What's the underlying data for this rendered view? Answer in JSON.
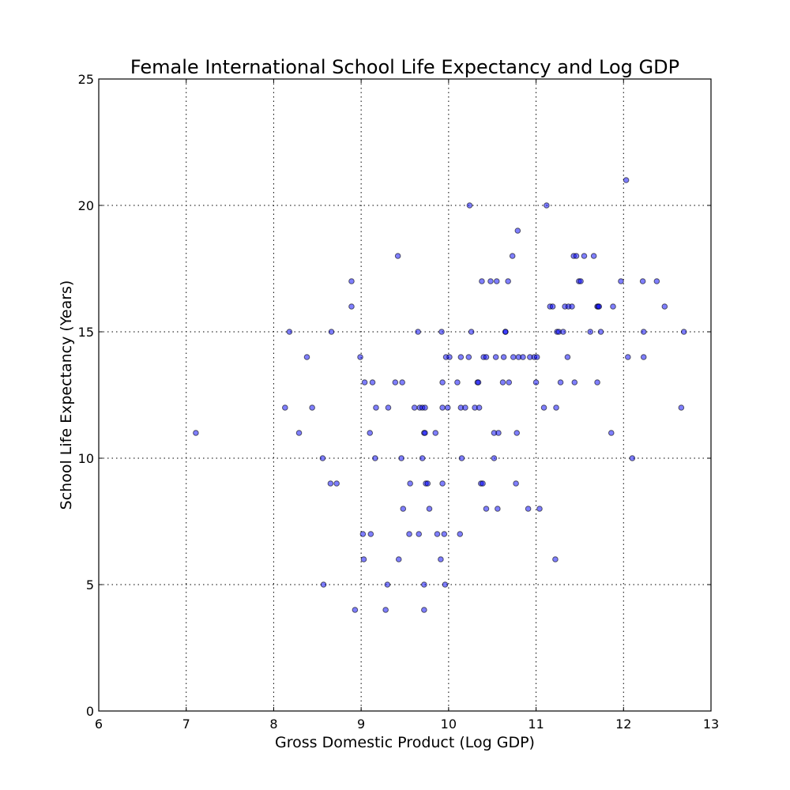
{
  "chart_data": {
    "type": "scatter",
    "title": "Female International School Life Expectancy and Log GDP",
    "xlabel": "Gross Domestic Product (Log GDP)",
    "ylabel": "School Life Expectancy (Years)",
    "xlim": [
      6,
      13
    ],
    "ylim": [
      0,
      25
    ],
    "xticks": [
      6,
      7,
      8,
      9,
      10,
      11,
      12,
      13
    ],
    "yticks": [
      0,
      5,
      10,
      15,
      20,
      25
    ],
    "grid": true,
    "point_color": "#0000ff",
    "points": [
      [
        7.11,
        11
      ],
      [
        8.13,
        12
      ],
      [
        8.18,
        15
      ],
      [
        8.29,
        11
      ],
      [
        8.38,
        14
      ],
      [
        8.44,
        12
      ],
      [
        8.56,
        10
      ],
      [
        8.57,
        5
      ],
      [
        8.65,
        9
      ],
      [
        8.66,
        15
      ],
      [
        8.72,
        9
      ],
      [
        8.89,
        17
      ],
      [
        8.89,
        16
      ],
      [
        8.93,
        4
      ],
      [
        8.99,
        14
      ],
      [
        9.02,
        7
      ],
      [
        9.03,
        6
      ],
      [
        9.04,
        13
      ],
      [
        9.1,
        11
      ],
      [
        9.11,
        7
      ],
      [
        9.13,
        13
      ],
      [
        9.16,
        10
      ],
      [
        9.17,
        12
      ],
      [
        9.28,
        4
      ],
      [
        9.3,
        5
      ],
      [
        9.31,
        12
      ],
      [
        9.39,
        13
      ],
      [
        9.42,
        18
      ],
      [
        9.43,
        6
      ],
      [
        9.46,
        10
      ],
      [
        9.47,
        13
      ],
      [
        9.48,
        8
      ],
      [
        9.55,
        7
      ],
      [
        9.56,
        9
      ],
      [
        9.61,
        12
      ],
      [
        9.65,
        15
      ],
      [
        9.66,
        7
      ],
      [
        9.67,
        12
      ],
      [
        9.7,
        12
      ],
      [
        9.7,
        10
      ],
      [
        9.72,
        11
      ],
      [
        9.72,
        5
      ],
      [
        9.72,
        4
      ],
      [
        9.73,
        12
      ],
      [
        9.73,
        11
      ],
      [
        9.74,
        9
      ],
      [
        9.76,
        9
      ],
      [
        9.78,
        8
      ],
      [
        9.85,
        11
      ],
      [
        9.87,
        7
      ],
      [
        9.91,
        6
      ],
      [
        9.92,
        15
      ],
      [
        9.93,
        12
      ],
      [
        9.93,
        13
      ],
      [
        9.93,
        9
      ],
      [
        9.95,
        7
      ],
      [
        9.96,
        5
      ],
      [
        9.97,
        14
      ],
      [
        9.99,
        12
      ],
      [
        10.01,
        14
      ],
      [
        10.1,
        13
      ],
      [
        10.13,
        7
      ],
      [
        10.14,
        14
      ],
      [
        10.14,
        12
      ],
      [
        10.15,
        10
      ],
      [
        10.19,
        12
      ],
      [
        10.23,
        14
      ],
      [
        10.24,
        20
      ],
      [
        10.26,
        15
      ],
      [
        10.3,
        12
      ],
      [
        10.33,
        13
      ],
      [
        10.34,
        13
      ],
      [
        10.35,
        12
      ],
      [
        10.37,
        9
      ],
      [
        10.38,
        17
      ],
      [
        10.39,
        9
      ],
      [
        10.4,
        14
      ],
      [
        10.43,
        14
      ],
      [
        10.43,
        8
      ],
      [
        10.48,
        17
      ],
      [
        10.52,
        10
      ],
      [
        10.52,
        11
      ],
      [
        10.54,
        14
      ],
      [
        10.55,
        17
      ],
      [
        10.56,
        8
      ],
      [
        10.57,
        11
      ],
      [
        10.62,
        13
      ],
      [
        10.63,
        14
      ],
      [
        10.65,
        15
      ],
      [
        10.65,
        15
      ],
      [
        10.68,
        17
      ],
      [
        10.69,
        13
      ],
      [
        10.73,
        18
      ],
      [
        10.74,
        14
      ],
      [
        10.77,
        9
      ],
      [
        10.78,
        11
      ],
      [
        10.79,
        19
      ],
      [
        10.8,
        14
      ],
      [
        10.85,
        14
      ],
      [
        10.91,
        8
      ],
      [
        10.93,
        14
      ],
      [
        10.98,
        14
      ],
      [
        11.0,
        13
      ],
      [
        11.01,
        14
      ],
      [
        11.04,
        8
      ],
      [
        11.09,
        12
      ],
      [
        11.12,
        20
      ],
      [
        11.16,
        16
      ],
      [
        11.19,
        16
      ],
      [
        11.22,
        6
      ],
      [
        11.23,
        12
      ],
      [
        11.24,
        15
      ],
      [
        11.26,
        15
      ],
      [
        11.28,
        13
      ],
      [
        11.31,
        15
      ],
      [
        11.33,
        16
      ],
      [
        11.36,
        14
      ],
      [
        11.37,
        16
      ],
      [
        11.41,
        16
      ],
      [
        11.43,
        18
      ],
      [
        11.44,
        13
      ],
      [
        11.46,
        18
      ],
      [
        11.49,
        17
      ],
      [
        11.51,
        17
      ],
      [
        11.55,
        18
      ],
      [
        11.62,
        15
      ],
      [
        11.66,
        18
      ],
      [
        11.7,
        16
      ],
      [
        11.7,
        13
      ],
      [
        11.71,
        16
      ],
      [
        11.72,
        16
      ],
      [
        11.74,
        15
      ],
      [
        11.86,
        11
      ],
      [
        11.88,
        16
      ],
      [
        11.97,
        17
      ],
      [
        12.03,
        21
      ],
      [
        12.05,
        14
      ],
      [
        12.1,
        10
      ],
      [
        12.22,
        17
      ],
      [
        12.23,
        15
      ],
      [
        12.23,
        14
      ],
      [
        12.38,
        17
      ],
      [
        12.47,
        16
      ],
      [
        12.66,
        12
      ],
      [
        12.69,
        15
      ]
    ]
  }
}
